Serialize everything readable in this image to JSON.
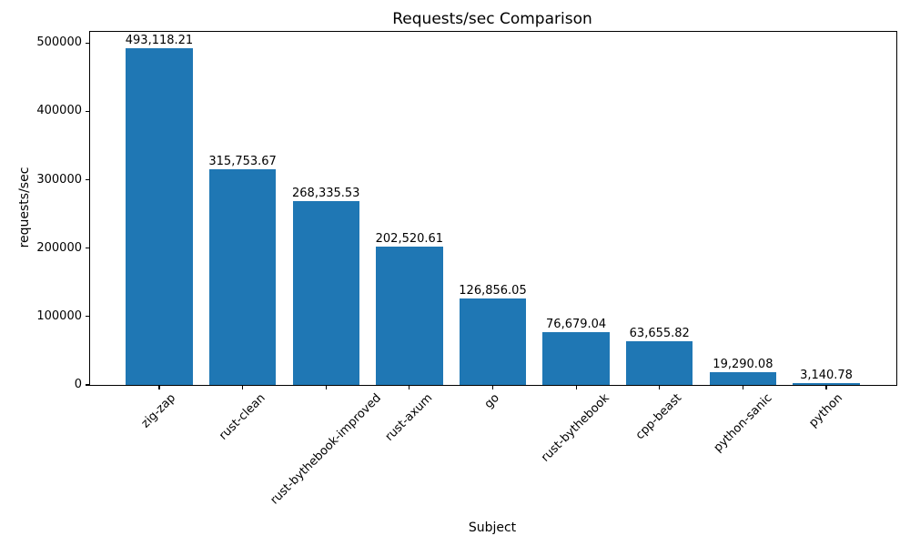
{
  "chart_data": {
    "type": "bar",
    "title": "Requests/sec Comparison",
    "xlabel": "Subject",
    "ylabel": "requests/sec",
    "categories": [
      "zig-zap",
      "rust-clean",
      "rust-bythebook-improved",
      "rust-axum",
      "go",
      "rust-bythebook",
      "cpp-beast",
      "python-sanic",
      "python"
    ],
    "values": [
      493118.21,
      315753.67,
      268335.53,
      202520.61,
      126856.05,
      76679.04,
      63655.82,
      19290.08,
      3140.78
    ],
    "bar_labels": [
      "493,118.21",
      "315,753.67",
      "268,335.53",
      "202,520.61",
      "126,856.05",
      "76,679.04",
      "63,655.82",
      "19,290.08",
      "3,140.78"
    ],
    "yticks": [
      0,
      100000,
      200000,
      300000,
      400000,
      500000
    ],
    "ytick_labels": [
      "0",
      "100000",
      "200000",
      "300000",
      "400000",
      "500000"
    ],
    "ylim": [
      0,
      517774
    ],
    "bar_color": "#1f77b4",
    "axis_color": "#000000",
    "grid": false,
    "x_tick_rotation_deg": 45,
    "bar_width_fraction": 0.8,
    "x_margin_fraction": 0.05
  }
}
